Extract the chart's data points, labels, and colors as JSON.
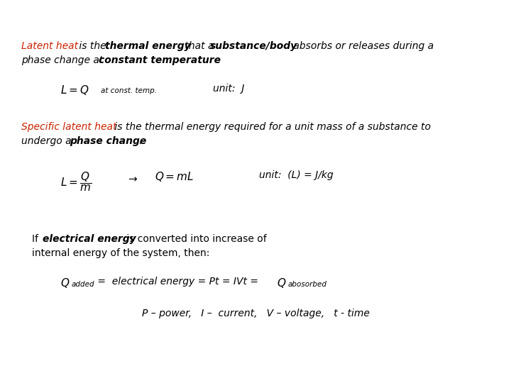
{
  "background_color": "#ffffff",
  "figsize": [
    7.2,
    5.4
  ],
  "dpi": 100,
  "font_family": "DejaVu Sans",
  "red_color": "#cc2200",
  "black": "#000000",
  "fs": 10.0,
  "fs_small": 7.5,
  "fs_formula": 11.0
}
